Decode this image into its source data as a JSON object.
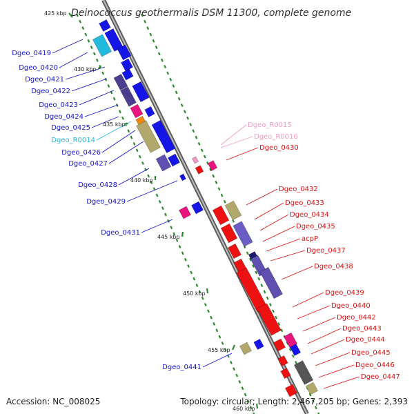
{
  "title": "Deinococcus geothermalis DSM 11300, complete genome",
  "footer": {
    "accession": "Accession: NC_008025",
    "summary": "Topology: circular; Length: 2,467,205 bp; Genes: 2,393"
  },
  "colors": {
    "cds_forward": "#1515e6",
    "cds_reverse": "#ee1111",
    "trna_forward": "#22bbdd",
    "trna_reverse": "#f29ac6",
    "axis": "#888888",
    "tick": "#2a8a2a"
  },
  "position_marks": [
    "425 kbp",
    "430 kbp",
    "435 kbp",
    "440 kbp",
    "445 kbp",
    "450 kbp",
    "455 kbp",
    "460 kbp"
  ],
  "labels_left": [
    "Dgeo_0419",
    "Dgeo_0420",
    "Dgeo_0421",
    "Dgeo_0422",
    "Dgeo_0423",
    "Dgeo_0424",
    "Dgeo_0425",
    "Dgeo_R0014",
    "Dgeo_0426",
    "Dgeo_0427",
    "Dgeo_0428",
    "Dgeo_0429",
    "Dgeo_0431",
    "Dgeo_0441"
  ],
  "labels_right": [
    "Dgeo_R0015",
    "Dgeo_R0016",
    "Dgeo_0430",
    "Dgeo_0432",
    "Dgeo_0433",
    "Dgeo_0434",
    "Dgeo_0435",
    "acpP",
    "Dgeo_0437",
    "Dgeo_0438",
    "Dgeo_0439",
    "Dgeo_0440",
    "Dgeo_0442",
    "Dgeo_0443",
    "Dgeo_0444",
    "Dgeo_0445",
    "Dgeo_0446",
    "Dgeo_0447"
  ]
}
